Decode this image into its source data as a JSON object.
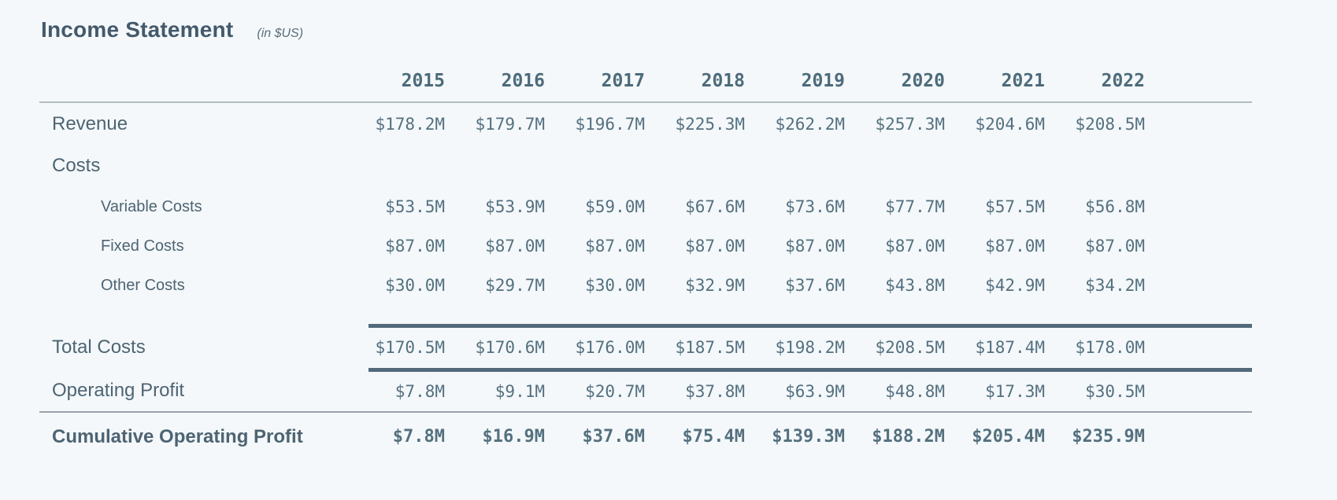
{
  "header": {
    "title": "Income Statement",
    "subtitle": "(in $US)"
  },
  "table": {
    "years": [
      "2015",
      "2016",
      "2017",
      "2018",
      "2019",
      "2020",
      "2021",
      "2022"
    ],
    "rows": [
      {
        "id": "revenue",
        "label": "Revenue",
        "style": "main",
        "values": [
          "$178.2M",
          "$179.7M",
          "$196.7M",
          "$225.3M",
          "$262.2M",
          "$257.3M",
          "$204.6M",
          "$208.5M"
        ]
      },
      {
        "id": "costs",
        "label": "Costs",
        "style": "main",
        "values": [
          "",
          "",
          "",
          "",
          "",
          "",
          "",
          ""
        ]
      },
      {
        "id": "variable-costs",
        "label": "Variable Costs",
        "style": "sub",
        "values": [
          "$53.5M",
          "$53.9M",
          "$59.0M",
          "$67.6M",
          "$73.6M",
          "$77.7M",
          "$57.5M",
          "$56.8M"
        ]
      },
      {
        "id": "fixed-costs",
        "label": "Fixed Costs",
        "style": "sub",
        "values": [
          "$87.0M",
          "$87.0M",
          "$87.0M",
          "$87.0M",
          "$87.0M",
          "$87.0M",
          "$87.0M",
          "$87.0M"
        ]
      },
      {
        "id": "other-costs",
        "label": "Other Costs",
        "style": "sub",
        "values": [
          "$30.0M",
          "$29.7M",
          "$30.0M",
          "$32.9M",
          "$37.6M",
          "$43.8M",
          "$42.9M",
          "$34.2M"
        ]
      },
      {
        "id": "total-costs",
        "label": "Total Costs",
        "style": "total",
        "values": [
          "$170.5M",
          "$170.6M",
          "$176.0M",
          "$187.5M",
          "$198.2M",
          "$208.5M",
          "$187.4M",
          "$178.0M"
        ]
      },
      {
        "id": "operating-profit",
        "label": "Operating Profit",
        "style": "main",
        "values": [
          "$7.8M",
          "$9.1M",
          "$20.7M",
          "$37.8M",
          "$63.9M",
          "$48.8M",
          "$17.3M",
          "$30.5M"
        ]
      },
      {
        "id": "cumulative-operating-profit",
        "label": "Cumulative Operating Profit",
        "style": "cumulative",
        "values": [
          "$7.8M",
          "$16.9M",
          "$37.6M",
          "$75.4M",
          "$139.3M",
          "$188.2M",
          "$205.4M",
          "$235.9M"
        ]
      }
    ]
  },
  "colors": {
    "background": "#f4f8fa",
    "title_text": "#44596b",
    "label_text": "#4e6473",
    "value_text": "#54707f",
    "thick_rule": "#526a7a",
    "thin_rule": "#b4bbc1",
    "cumulative_rule": "#9aa2aa"
  }
}
